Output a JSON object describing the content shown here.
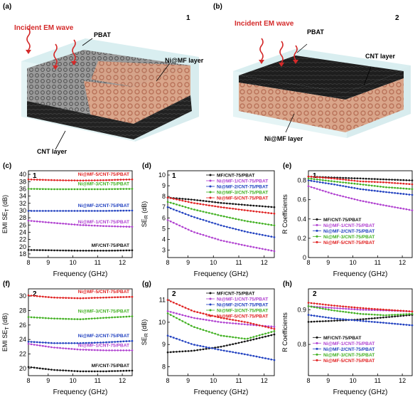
{
  "scenes": [
    {
      "panel_label": "(a)",
      "number": "1",
      "labels": {
        "incident": "Incident EM wave",
        "pbat": "PBAT",
        "nimf": "Ni@MF layer",
        "cnt": "CNT layer"
      }
    },
    {
      "panel_label": "(b)",
      "number": "2",
      "labels": {
        "incident": "Incident EM wave",
        "pbat": "PBAT",
        "cnt": "CNT layer",
        "nimf": "Ni@MF layer"
      }
    }
  ],
  "colors": {
    "black": "#111111",
    "purple": "#b040d0",
    "blue": "#2040c0",
    "green": "#40b020",
    "red": "#e02020",
    "incident_text": "#d42a2a"
  },
  "chart_data": [
    {
      "id": "c",
      "panel_label": "(c)",
      "number": "1",
      "type": "line",
      "xlabel": "Frequency (GHz)",
      "ylabel": "EMI SE_T (dB)",
      "xlim": [
        8.2,
        12.4
      ],
      "ylim": [
        17,
        41
      ],
      "xticks": [
        8,
        9,
        10,
        11,
        12
      ],
      "yticks": [
        18,
        20,
        22,
        24,
        26,
        28,
        30,
        32,
        34,
        36,
        38,
        40
      ],
      "legend_position": "inline",
      "series": [
        {
          "name": "MF/CNT-75/PBAT",
          "color": "#111111",
          "x": [
            8.2,
            9.2,
            10.3,
            11.3,
            12.4
          ],
          "y": [
            19.1,
            19.0,
            18.9,
            18.9,
            19.0
          ]
        },
        {
          "name": "Ni@MF-1/CNT-75/PBAT",
          "color": "#b040d0",
          "x": [
            8.2,
            9.2,
            10.3,
            11.3,
            12.4
          ],
          "y": [
            27.2,
            26.6,
            26.0,
            25.7,
            25.5
          ]
        },
        {
          "name": "Ni@MF-2/CNT-75/PBAT",
          "color": "#2040c0",
          "x": [
            8.2,
            9.2,
            10.3,
            11.3,
            12.4
          ],
          "y": [
            29.9,
            29.9,
            29.9,
            29.9,
            30.0
          ]
        },
        {
          "name": "Ni@MF-3/CNT-75/PBAT",
          "color": "#40b020",
          "x": [
            8.2,
            9.2,
            10.3,
            11.3,
            12.4
          ],
          "y": [
            36.0,
            35.9,
            35.9,
            35.9,
            36.0
          ]
        },
        {
          "name": "Ni@MF-5/CNT-75/PBAT",
          "color": "#e02020",
          "x": [
            8.2,
            9.2,
            10.3,
            11.3,
            12.4
          ],
          "y": [
            38.6,
            38.4,
            38.3,
            38.4,
            38.6
          ]
        }
      ]
    },
    {
      "id": "d",
      "panel_label": "(d)",
      "number": "1",
      "type": "line",
      "xlabel": "Frequency (GHz)",
      "ylabel": "SE_R (dB)",
      "xlim": [
        8.2,
        12.4
      ],
      "ylim": [
        2.3,
        10.4
      ],
      "xticks": [
        8,
        9,
        10,
        11,
        12
      ],
      "yticks": [
        3,
        4,
        5,
        6,
        7,
        8,
        9,
        10
      ],
      "legend_position": "top-right",
      "series": [
        {
          "name": "MF/CNT-75/PBAT",
          "color": "#111111",
          "x": [
            8.2,
            9.2,
            10.3,
            11.3,
            12.4
          ],
          "y": [
            7.9,
            7.7,
            7.4,
            7.2,
            7.0
          ]
        },
        {
          "name": "Ni@MF-1/CNT-75/PBAT",
          "color": "#b040d0",
          "x": [
            8.2,
            9.2,
            10.3,
            11.3,
            12.4
          ],
          "y": [
            5.8,
            4.7,
            3.9,
            3.4,
            2.9
          ]
        },
        {
          "name": "Ni@MF-2/CNT-75/PBAT",
          "color": "#2040c0",
          "x": [
            8.2,
            9.2,
            10.3,
            11.3,
            12.4
          ],
          "y": [
            7.0,
            6.1,
            5.3,
            4.7,
            4.2
          ]
        },
        {
          "name": "Ni@MF-3/CNT-75/PBAT",
          "color": "#40b020",
          "x": [
            8.2,
            9.2,
            10.3,
            11.3,
            12.4
          ],
          "y": [
            7.5,
            6.8,
            6.2,
            5.7,
            5.3
          ]
        },
        {
          "name": "Ni@MF-5/CNT-75/PBAT",
          "color": "#e02020",
          "x": [
            8.2,
            9.2,
            10.3,
            11.3,
            12.4
          ],
          "y": [
            7.9,
            7.4,
            7.0,
            6.7,
            6.4
          ]
        }
      ]
    },
    {
      "id": "e",
      "panel_label": "(e)",
      "number": "1",
      "type": "line",
      "xlabel": "Frequency (GHz)",
      "ylabel": "R Coefficients",
      "xlim": [
        8.2,
        12.4
      ],
      "ylim": [
        0.0,
        0.9
      ],
      "xticks": [
        8,
        9,
        10,
        11,
        12
      ],
      "yticks": [
        0.0,
        0.2,
        0.4,
        0.6,
        0.8
      ],
      "legend_position": "bottom-left",
      "series": [
        {
          "name": "MF/CNT-75/PBAT",
          "color": "#111111",
          "x": [
            8.2,
            9.2,
            10.3,
            11.3,
            12.4
          ],
          "y": [
            0.84,
            0.83,
            0.82,
            0.81,
            0.8
          ]
        },
        {
          "name": "Ni@MF-1/CNT-75/PBAT",
          "color": "#b040d0",
          "x": [
            8.2,
            9.2,
            10.3,
            11.3,
            12.4
          ],
          "y": [
            0.74,
            0.66,
            0.59,
            0.54,
            0.49
          ]
        },
        {
          "name": "Ni@MF-2/CNT-75/PBAT",
          "color": "#2040c0",
          "x": [
            8.2,
            9.2,
            10.3,
            11.3,
            12.4
          ],
          "y": [
            0.8,
            0.76,
            0.71,
            0.68,
            0.65
          ]
        },
        {
          "name": "Ni@MF-3/CNT-75/PBAT",
          "color": "#40b020",
          "x": [
            8.2,
            9.2,
            10.3,
            11.3,
            12.4
          ],
          "y": [
            0.82,
            0.79,
            0.76,
            0.73,
            0.71
          ]
        },
        {
          "name": "Ni@MF-5/CNT-75/PBAT",
          "color": "#e02020",
          "x": [
            8.2,
            9.2,
            10.3,
            11.3,
            12.4
          ],
          "y": [
            0.84,
            0.82,
            0.79,
            0.78,
            0.76
          ]
        }
      ]
    },
    {
      "id": "f",
      "panel_label": "(f)",
      "number": "2",
      "type": "line",
      "xlabel": "Frequency (GHz)",
      "ylabel": "EMI SE_T (dB)",
      "xlim": [
        8.2,
        12.4
      ],
      "ylim": [
        19,
        31
      ],
      "xticks": [
        8,
        9,
        10,
        11,
        12
      ],
      "yticks": [
        20,
        22,
        24,
        26,
        28,
        30
      ],
      "legend_position": "inline",
      "series": [
        {
          "name": "MF/CNT-75/PBAT",
          "color": "#111111",
          "x": [
            8.2,
            9.2,
            10.3,
            11.3,
            12.4
          ],
          "y": [
            20.2,
            19.8,
            19.6,
            19.6,
            19.7
          ]
        },
        {
          "name": "Ni@MF-1/CNT-75/PBAT",
          "color": "#b040d0",
          "x": [
            8.2,
            9.2,
            10.3,
            11.3,
            12.4
          ],
          "y": [
            23.4,
            22.9,
            22.6,
            22.5,
            22.5
          ]
        },
        {
          "name": "Ni@MF-2/CNT-75/PBAT",
          "color": "#2040c0",
          "x": [
            8.2,
            9.2,
            10.3,
            11.3,
            12.4
          ],
          "y": [
            23.7,
            23.5,
            23.5,
            23.6,
            23.8
          ]
        },
        {
          "name": "Ni@MF-3/CNT-75/PBAT",
          "color": "#40b020",
          "x": [
            8.2,
            9.2,
            10.3,
            11.3,
            12.4
          ],
          "y": [
            27.1,
            26.9,
            26.8,
            27.0,
            27.2
          ]
        },
        {
          "name": "Ni@MF-5/CNT-75/PBAT",
          "color": "#e02020",
          "x": [
            8.2,
            9.2,
            10.3,
            11.3,
            12.4
          ],
          "y": [
            30.1,
            29.8,
            29.7,
            29.8,
            29.9
          ]
        }
      ]
    },
    {
      "id": "g",
      "panel_label": "(g)",
      "number": "2",
      "type": "line",
      "xlabel": "Frequency (GHz)",
      "ylabel": "SE_R (dB)",
      "xlim": [
        8.2,
        12.4
      ],
      "ylim": [
        7.6,
        11.5
      ],
      "xticks": [
        8,
        9,
        10,
        11,
        12
      ],
      "yticks": [
        8,
        9,
        10,
        11
      ],
      "legend_position": "top-right",
      "series": [
        {
          "name": "MF/CNT-75/PBAT",
          "color": "#111111",
          "x": [
            8.2,
            9.2,
            10.3,
            11.3,
            12.4
          ],
          "y": [
            8.65,
            8.72,
            8.9,
            9.15,
            9.45
          ]
        },
        {
          "name": "Ni@MF-1/CNT-75/PBAT",
          "color": "#b040d0",
          "x": [
            8.2,
            9.2,
            10.3,
            11.3,
            12.4
          ],
          "y": [
            10.5,
            10.2,
            10.0,
            9.9,
            9.8
          ]
        },
        {
          "name": "Ni@MF-2/CNT-75/PBAT",
          "color": "#2040c0",
          "x": [
            8.2,
            9.2,
            10.3,
            11.3,
            12.4
          ],
          "y": [
            9.4,
            9.0,
            8.75,
            8.55,
            8.3
          ]
        },
        {
          "name": "Ni@MF-3/CNT-75/PBAT",
          "color": "#40b020",
          "x": [
            8.2,
            9.2,
            10.3,
            11.3,
            12.4
          ],
          "y": [
            10.4,
            9.8,
            9.4,
            9.25,
            9.6
          ]
        },
        {
          "name": "Ni@MF-5/CNT-75/PBAT",
          "color": "#e02020",
          "x": [
            8.2,
            9.2,
            10.3,
            11.3,
            12.4
          ],
          "y": [
            11.0,
            10.5,
            10.2,
            10.0,
            9.7
          ]
        }
      ]
    },
    {
      "id": "h",
      "panel_label": "(h)",
      "number": "2",
      "type": "line",
      "xlabel": "Frequency (GHz)",
      "ylabel": "R Coefficients",
      "xlim": [
        8.2,
        12.4
      ],
      "ylim": [
        0.71,
        0.96
      ],
      "xticks": [
        8,
        9,
        10,
        11,
        12
      ],
      "yticks": [
        0.8,
        0.9
      ],
      "legend_position": "bottom-left",
      "series": [
        {
          "name": "MF/CNT-75/PBAT",
          "color": "#111111",
          "x": [
            8.2,
            9.2,
            10.3,
            11.3,
            12.4
          ],
          "y": [
            0.865,
            0.868,
            0.872,
            0.878,
            0.885
          ]
        },
        {
          "name": "Ni@MF-1/CNT-75/PBAT",
          "color": "#b040d0",
          "x": [
            8.2,
            9.2,
            10.3,
            11.3,
            12.4
          ],
          "y": [
            0.91,
            0.905,
            0.9,
            0.898,
            0.895
          ]
        },
        {
          "name": "Ni@MF-2/CNT-75/PBAT",
          "color": "#2040c0",
          "x": [
            8.2,
            9.2,
            10.3,
            11.3,
            12.4
          ],
          "y": [
            0.885,
            0.875,
            0.868,
            0.862,
            0.855
          ]
        },
        {
          "name": "Ni@MF-3/CNT-75/PBAT",
          "color": "#40b020",
          "x": [
            8.2,
            9.2,
            10.3,
            11.3,
            12.4
          ],
          "y": [
            0.91,
            0.898,
            0.888,
            0.884,
            0.888
          ]
        },
        {
          "name": "Ni@MF-5/CNT-75/PBAT",
          "color": "#e02020",
          "x": [
            8.2,
            9.2,
            10.3,
            11.3,
            12.4
          ],
          "y": [
            0.92,
            0.912,
            0.905,
            0.9,
            0.895
          ]
        }
      ]
    }
  ]
}
